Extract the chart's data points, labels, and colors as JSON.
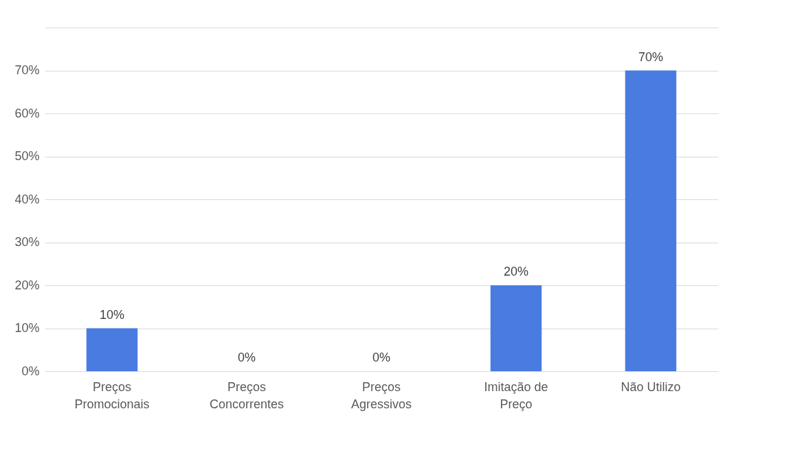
{
  "chart_data": {
    "type": "bar",
    "categories": [
      "Preços Promocionais",
      "Preços Concorrentes",
      "Preços Agressivos",
      "Imitação de Preço",
      "Não Utilizo"
    ],
    "values": [
      10,
      0,
      0,
      20,
      70
    ],
    "color": "#4a7be0",
    "data_labels": true,
    "value_labels": [
      "10%",
      "0%",
      "0%",
      "20%",
      "70%"
    ],
    "ylim": [
      0,
      80
    ],
    "yticks": [
      {
        "value": 0,
        "label": "0%"
      },
      {
        "value": 10,
        "label": "10%"
      },
      {
        "value": 20,
        "label": "20%"
      },
      {
        "value": 30,
        "label": "30%"
      },
      {
        "value": 40,
        "label": "40%"
      },
      {
        "value": 50,
        "label": "50%"
      },
      {
        "value": 60,
        "label": "60%"
      },
      {
        "value": 70,
        "label": "70%"
      },
      {
        "value": 80,
        "label": null
      }
    ],
    "grid": "y"
  }
}
